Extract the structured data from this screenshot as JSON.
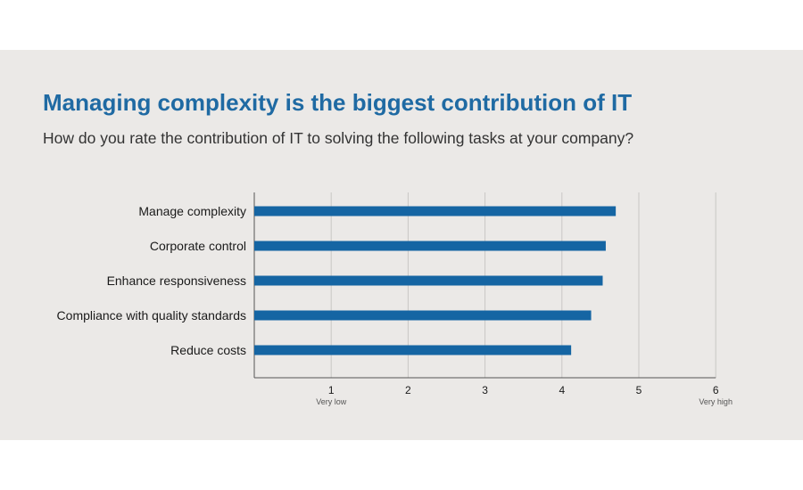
{
  "chart_data": {
    "type": "bar",
    "orientation": "horizontal",
    "title": "Managing complexity is the biggest contribution of IT",
    "subtitle": "How do you rate the contribution of IT to solving the following tasks at your company?",
    "categories": [
      "Manage complexity",
      "Corporate control",
      "Enhance responsiveness",
      "Compliance with quality standards",
      "Reduce costs"
    ],
    "values": [
      4.7,
      4.57,
      4.53,
      4.38,
      4.12
    ],
    "xlim": [
      0,
      6
    ],
    "xticks": [
      1,
      2,
      3,
      4,
      5,
      6
    ],
    "xtick_sublabels": {
      "1": "Very low",
      "6": "Very high"
    },
    "grid": true,
    "bar_color": "#1565a3"
  }
}
